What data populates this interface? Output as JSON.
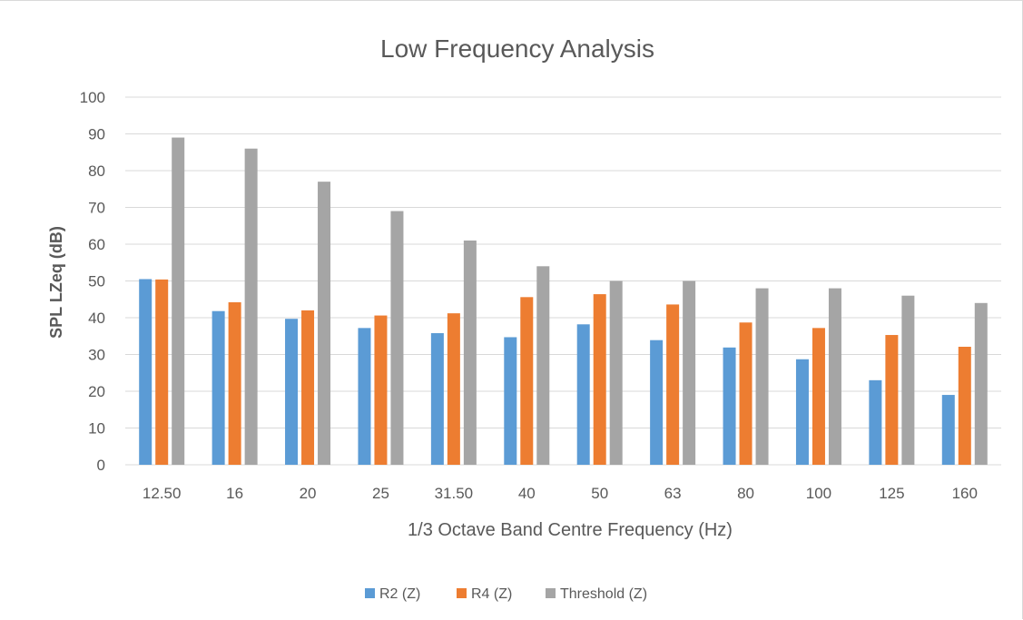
{
  "chart_data": {
    "type": "bar",
    "title": "Low Frequency Analysis",
    "xlabel": "1/3 Octave Band Centre Frequency (Hz)",
    "ylabel": "SPL LZeq (dB)",
    "ylim": [
      0,
      100
    ],
    "yticks": [
      "0",
      "10",
      "20",
      "30",
      "40",
      "50",
      "60",
      "70",
      "80",
      "90",
      "100"
    ],
    "grid": true,
    "legend_position": "bottom",
    "categories": [
      "12.50",
      "16",
      "20",
      "25",
      "31.50",
      "40",
      "50",
      "63",
      "80",
      "100",
      "125",
      "160"
    ],
    "series": [
      {
        "name": "R2 (Z)",
        "color": "#5b9bd5",
        "values": [
          50.5,
          41.8,
          39.7,
          37.2,
          35.8,
          34.7,
          38.2,
          33.9,
          31.9,
          28.7,
          23.0,
          19.0
        ]
      },
      {
        "name": "R4 (Z)",
        "color": "#ed7d31",
        "values": [
          50.4,
          44.2,
          42.0,
          40.6,
          41.2,
          45.6,
          46.4,
          43.6,
          38.7,
          37.2,
          35.3,
          32.1
        ]
      },
      {
        "name": "Threshold (Z)",
        "color": "#a5a5a5",
        "values": [
          89,
          86,
          77,
          69,
          61,
          54,
          50,
          50,
          48,
          48,
          46,
          44
        ]
      }
    ]
  }
}
